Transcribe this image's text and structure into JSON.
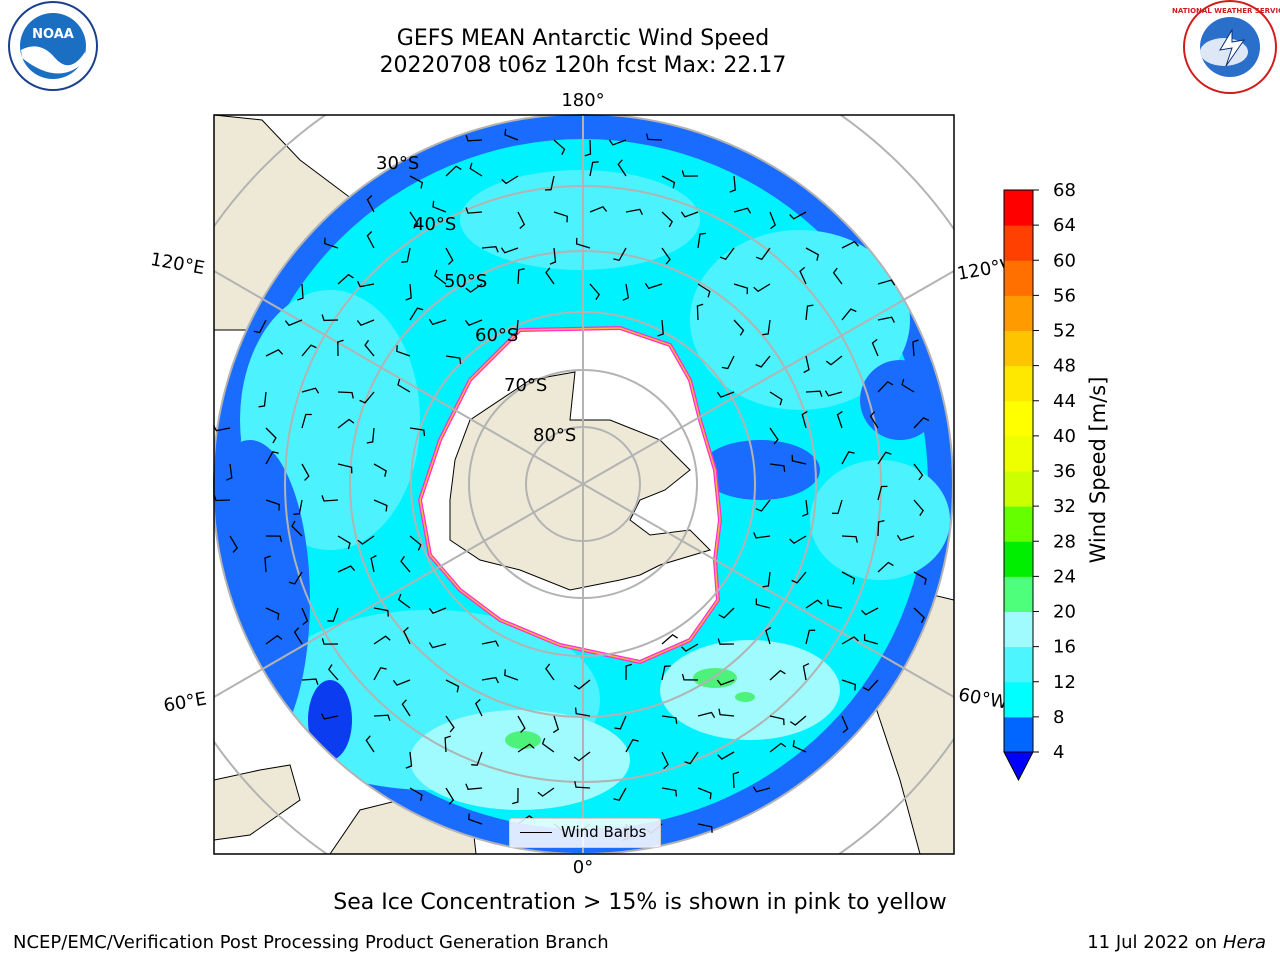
{
  "title": {
    "line1": "GEFS MEAN Antarctic Wind Speed",
    "line2": "20220708 t06z 120h fcst   Max: 22.17"
  },
  "map": {
    "projection": "south-polar-stereographic",
    "longitude_labels": {
      "top": "180°",
      "bottom": "0°",
      "left_upper": "120°E",
      "left_lower": "60°E",
      "right_upper": "120°W",
      "right_lower": "60°W"
    },
    "latitude_labels": [
      "30°S",
      "40°S",
      "50°S",
      "60°S",
      "70°S",
      "80°S"
    ],
    "colors": {
      "land": "#ede9d6",
      "ice": "#ffffff",
      "ws_4_8": "#1a6cff",
      "ws_8_12": "#00f2ff",
      "ws_12_16": "#4cf3ff",
      "ws_16_20": "#a0fbff",
      "ws_20_24": "#4df27a",
      "ocean_edge": "#0b3cf0",
      "grid": "#b3b3b3",
      "ice_edge": "#ff30d0"
    }
  },
  "legend": {
    "label": "Wind Barbs"
  },
  "colorbar": {
    "label": "Wind Speed [m/s]",
    "ticks": [
      "4",
      "8",
      "12",
      "16",
      "20",
      "24",
      "28",
      "32",
      "36",
      "40",
      "44",
      "48",
      "52",
      "56",
      "60",
      "64",
      "68"
    ],
    "colors": [
      "#0066ff",
      "#00ffff",
      "#4cf5ff",
      "#a0fbff",
      "#4dff7a",
      "#00ee00",
      "#66ff00",
      "#ccff00",
      "#eeff00",
      "#ffff00",
      "#ffe800",
      "#ffc400",
      "#ff9a00",
      "#ff7000",
      "#ff4000",
      "#ff0000"
    ],
    "extend_color": "#0000ff"
  },
  "caption": "Sea Ice Concentration > 15% is shown in pink to yellow",
  "footer": {
    "left": "NCEP/EMC/Verification Post Processing Product Generation Branch",
    "right_date": "11 Jul 2022 on ",
    "right_machine": "Hera"
  },
  "logos": {
    "left": "NOAA",
    "right": "NATIONAL WEATHER SERVICE"
  }
}
